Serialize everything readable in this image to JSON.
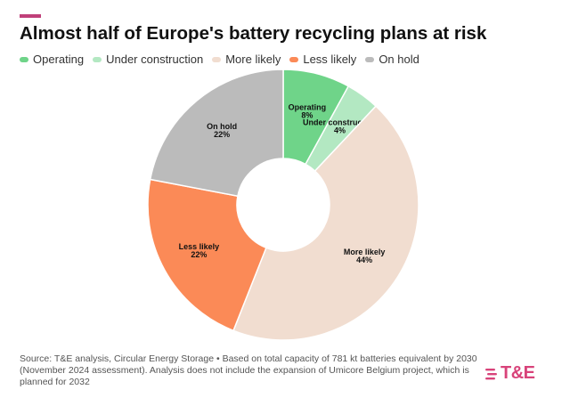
{
  "title": "Almost half of Europe's battery recycling plans at risk",
  "colors": {
    "accent": "#c0407a",
    "brand": "#d8437a",
    "operating": "#6fd489",
    "under_construction": "#b3e8c2",
    "more_likely": "#f1ddd0",
    "less_likely": "#fb8a57",
    "on_hold": "#bbbbbb"
  },
  "chart_data": {
    "type": "pie",
    "donut": true,
    "title": "Almost half of Europe's battery recycling plans at risk",
    "legend_position": "top-left",
    "slices": [
      {
        "name": "Operating",
        "value": 8,
        "label": "8%",
        "color": "#6fd489"
      },
      {
        "name": "Under construction",
        "value": 4,
        "label": "4%",
        "color": "#b3e8c2"
      },
      {
        "name": "More likely",
        "value": 44,
        "label": "44%",
        "color": "#f1ddd0"
      },
      {
        "name": "Less likely",
        "value": 22,
        "label": "22%",
        "color": "#fb8a57"
      },
      {
        "name": "On hold",
        "value": 22,
        "label": "22%",
        "color": "#bbbbbb"
      }
    ]
  },
  "footnote": "Source: T&E analysis, Circular Energy Storage • Based on total capacity of 781 kt batteries equivalent by 2030 (November 2024 assessment). Analysis does not include the expansion of Umicore Belgium project, which is planned for 2032",
  "logo": {
    "text": "T&E",
    "icon": "three-bar-logo-icon"
  }
}
